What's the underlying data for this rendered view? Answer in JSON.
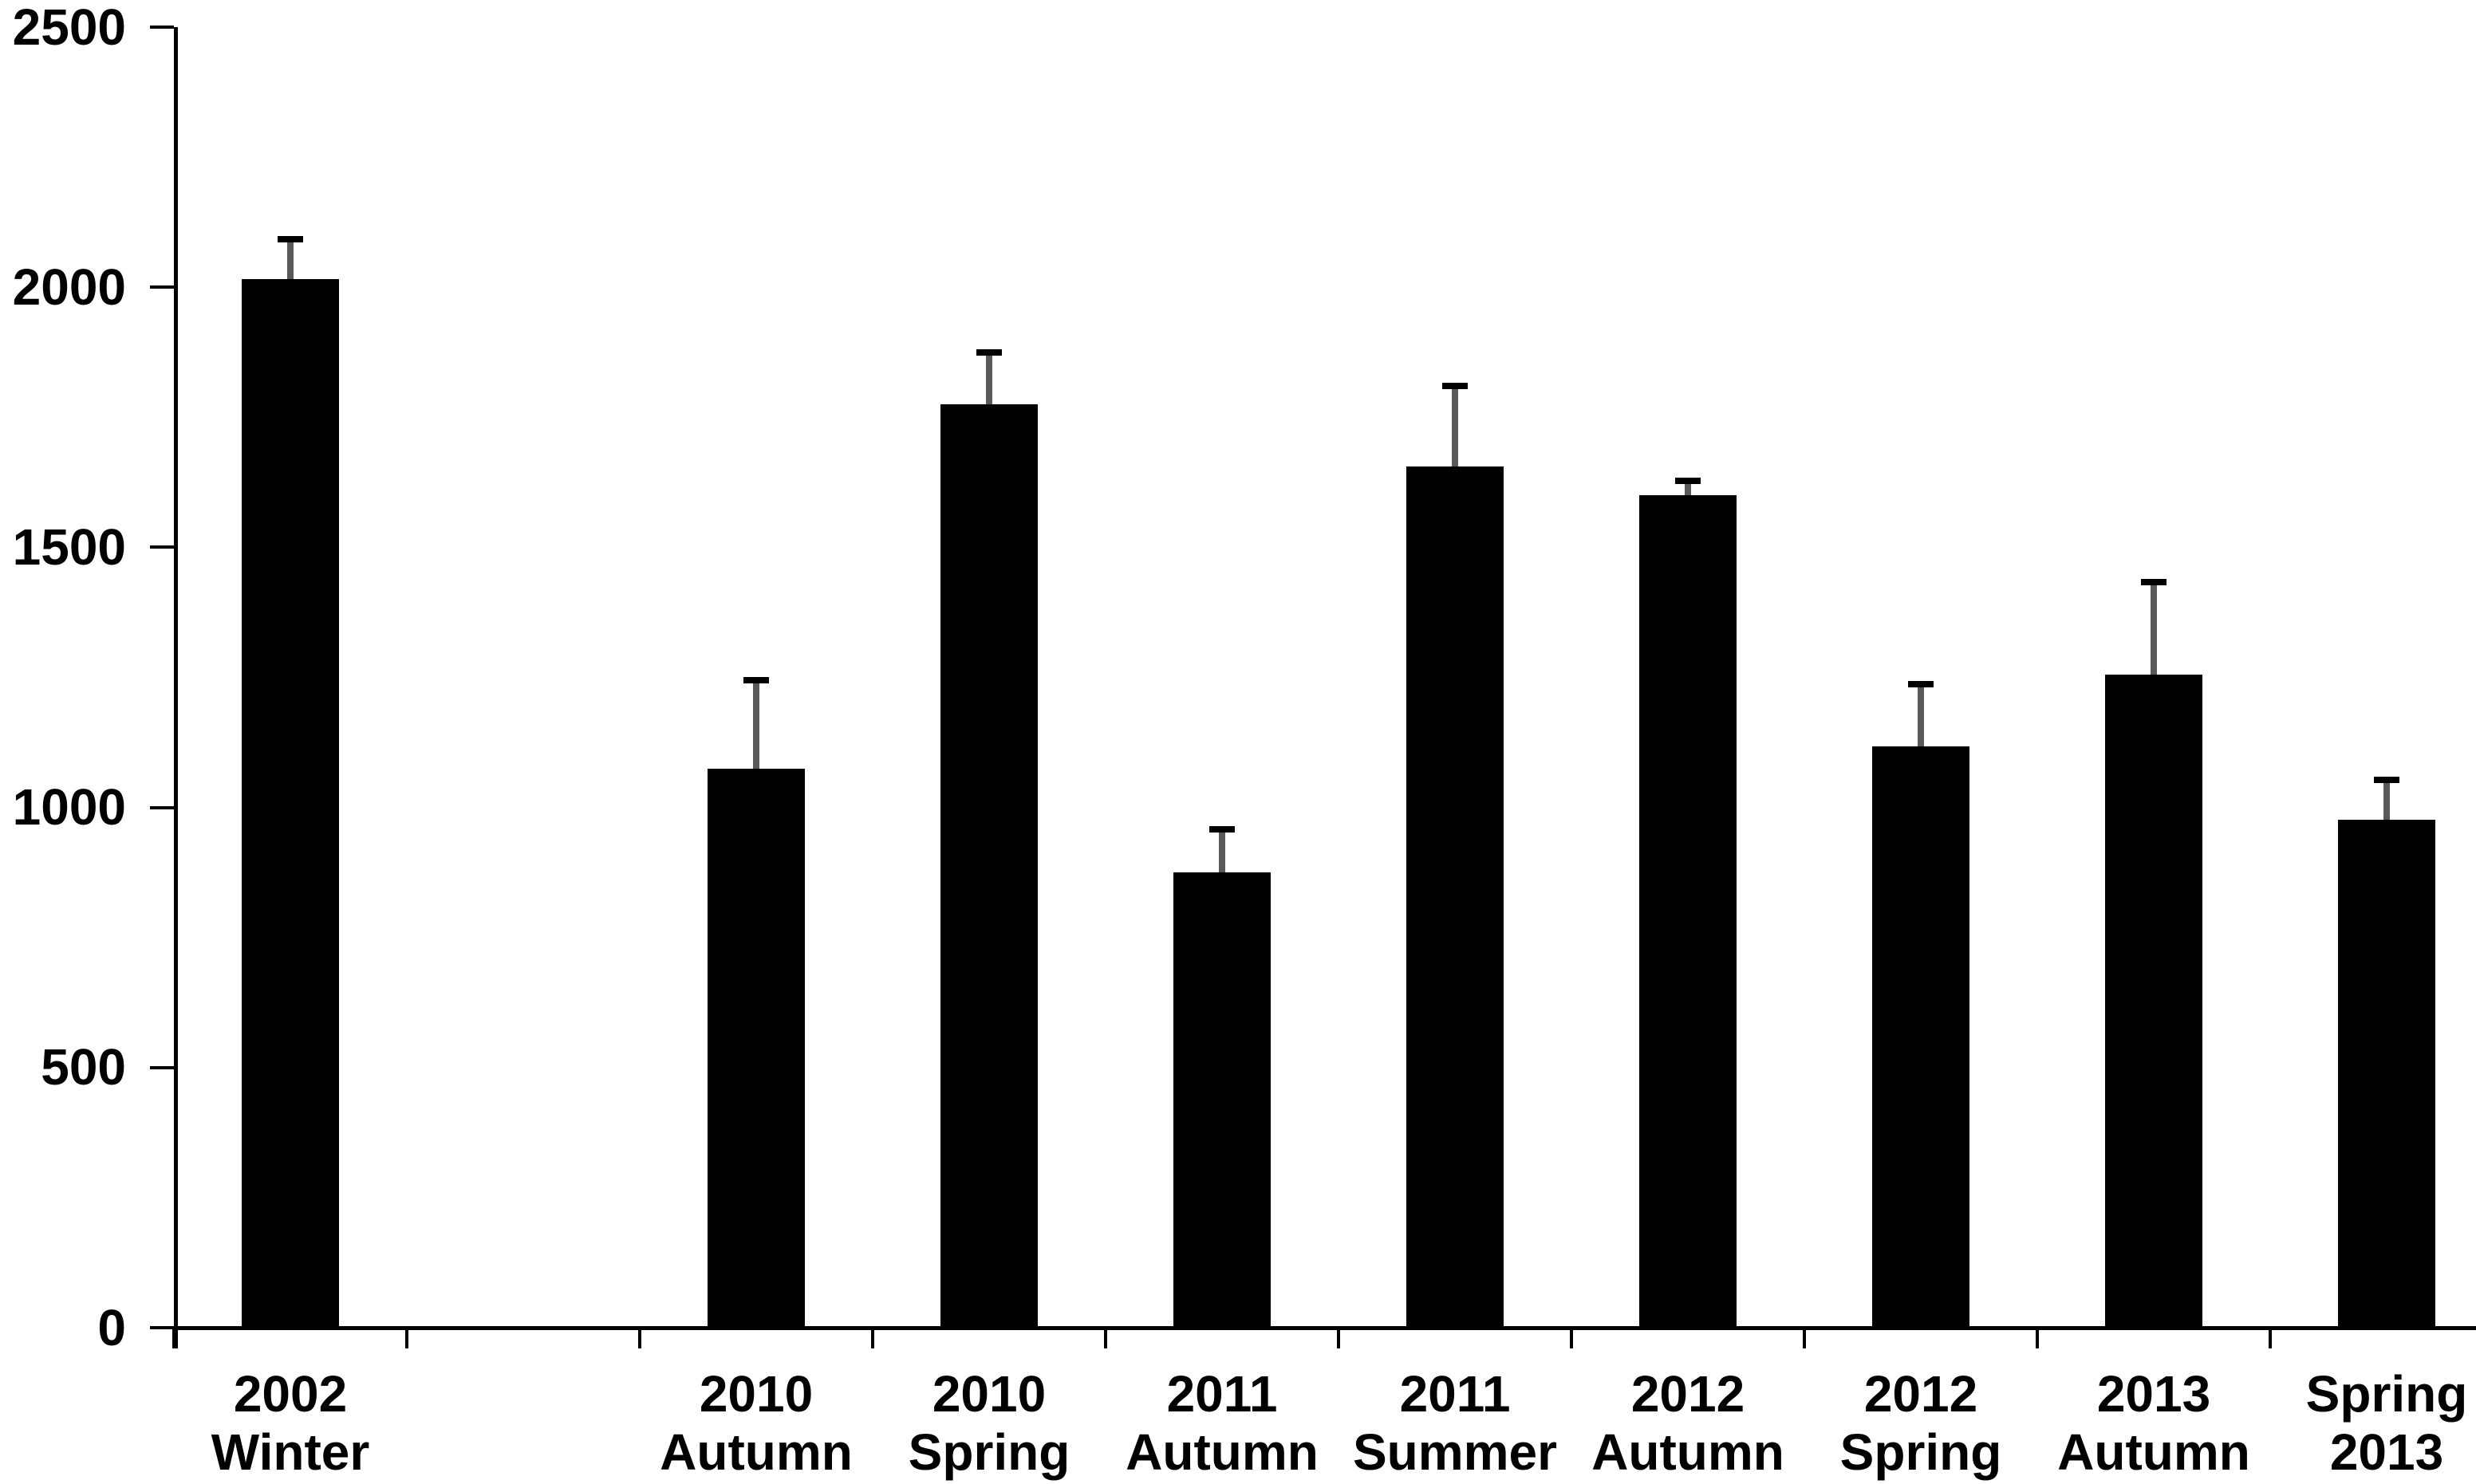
{
  "chart_data": {
    "type": "bar",
    "title": "",
    "xlabel": "",
    "ylabel": "",
    "ylim": [
      0,
      2500
    ],
    "yticks": [
      0,
      500,
      1000,
      1500,
      2000,
      2500
    ],
    "grid": false,
    "legend": false,
    "bar_color": "#000000",
    "background_color": "#ffffff",
    "error_bars": "upper-only",
    "slot_count": 10,
    "note_empty_slot_index": 1,
    "categories": [
      [
        "2002",
        "Winter"
      ],
      [
        "2010",
        "Autumn"
      ],
      [
        "2010",
        "Spring"
      ],
      [
        "2011",
        "Autumn"
      ],
      [
        "2011",
        "Summer"
      ],
      [
        "2012",
        "Autumn"
      ],
      [
        "2012",
        "Spring"
      ],
      [
        "2013",
        "Autumn"
      ],
      [
        "Spring",
        "2013"
      ]
    ],
    "slot_indices": [
      0,
      2,
      3,
      4,
      5,
      6,
      7,
      8,
      9
    ],
    "values": [
      2015,
      1075,
      1775,
      875,
      1655,
      1600,
      1118,
      1255,
      976
    ],
    "error_upper": [
      78,
      170,
      100,
      83,
      155,
      28,
      119,
      178,
      77
    ]
  }
}
